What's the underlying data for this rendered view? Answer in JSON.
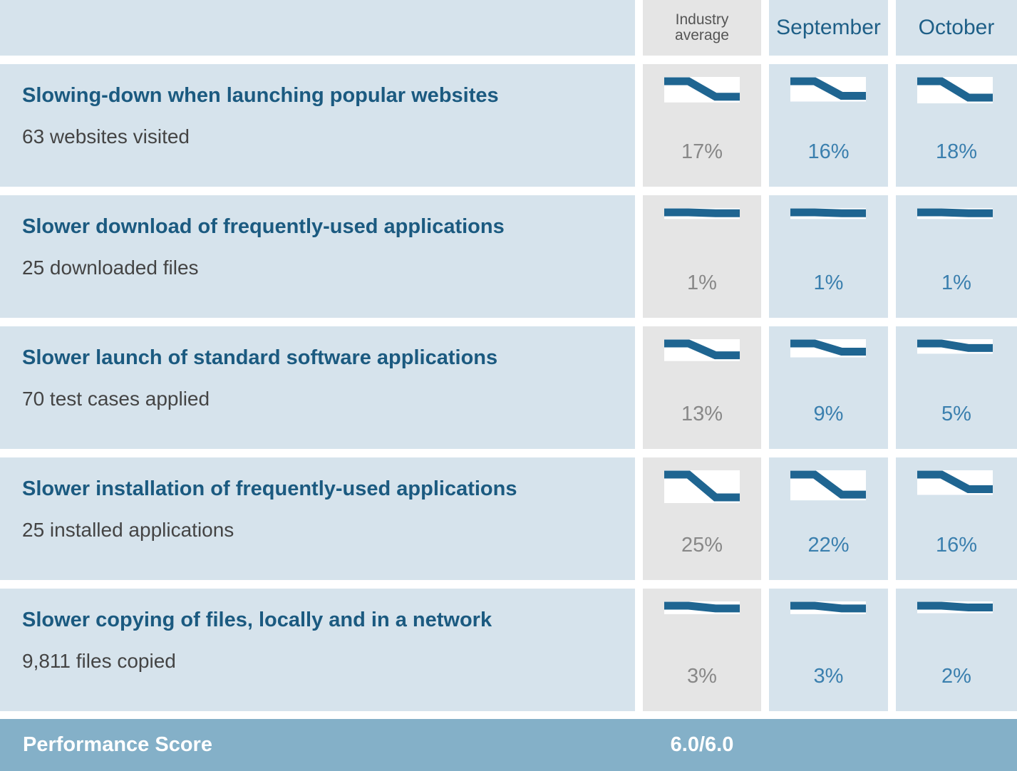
{
  "header": {
    "industry_line1": "Industry",
    "industry_line2": "average",
    "september": "September",
    "october": "October"
  },
  "chart_data": {
    "type": "table",
    "columns": [
      "Industry average",
      "September",
      "October"
    ],
    "rows": [
      {
        "title": "Slowing-down when launching popular websites",
        "subtitle": "63 websites visited",
        "values": [
          17,
          16,
          18
        ]
      },
      {
        "title": "Slower download of frequently-used applications",
        "subtitle": "25 downloaded files",
        "values": [
          1,
          1,
          1
        ]
      },
      {
        "title": "Slower launch of standard software applications",
        "subtitle": "70 test cases applied",
        "values": [
          13,
          9,
          5
        ]
      },
      {
        "title": "Slower installation of frequently-used applications",
        "subtitle": "25 installed applications",
        "values": [
          25,
          22,
          16
        ]
      },
      {
        "title": "Slower copying of files, locally and in a network",
        "subtitle": "9,811 files copied",
        "values": [
          3,
          3,
          2
        ]
      }
    ],
    "value_suffix": "%",
    "spark_scale_max": 25
  },
  "footer": {
    "label": "Performance Score",
    "value": "6.0/6.0"
  },
  "colors": {
    "cell_blue": "#d6e3ec",
    "cell_grey": "#e5e5e5",
    "spark_line": "#1f6591",
    "title_text": "#1b5a80",
    "footer_bg": "#84b0c8"
  }
}
